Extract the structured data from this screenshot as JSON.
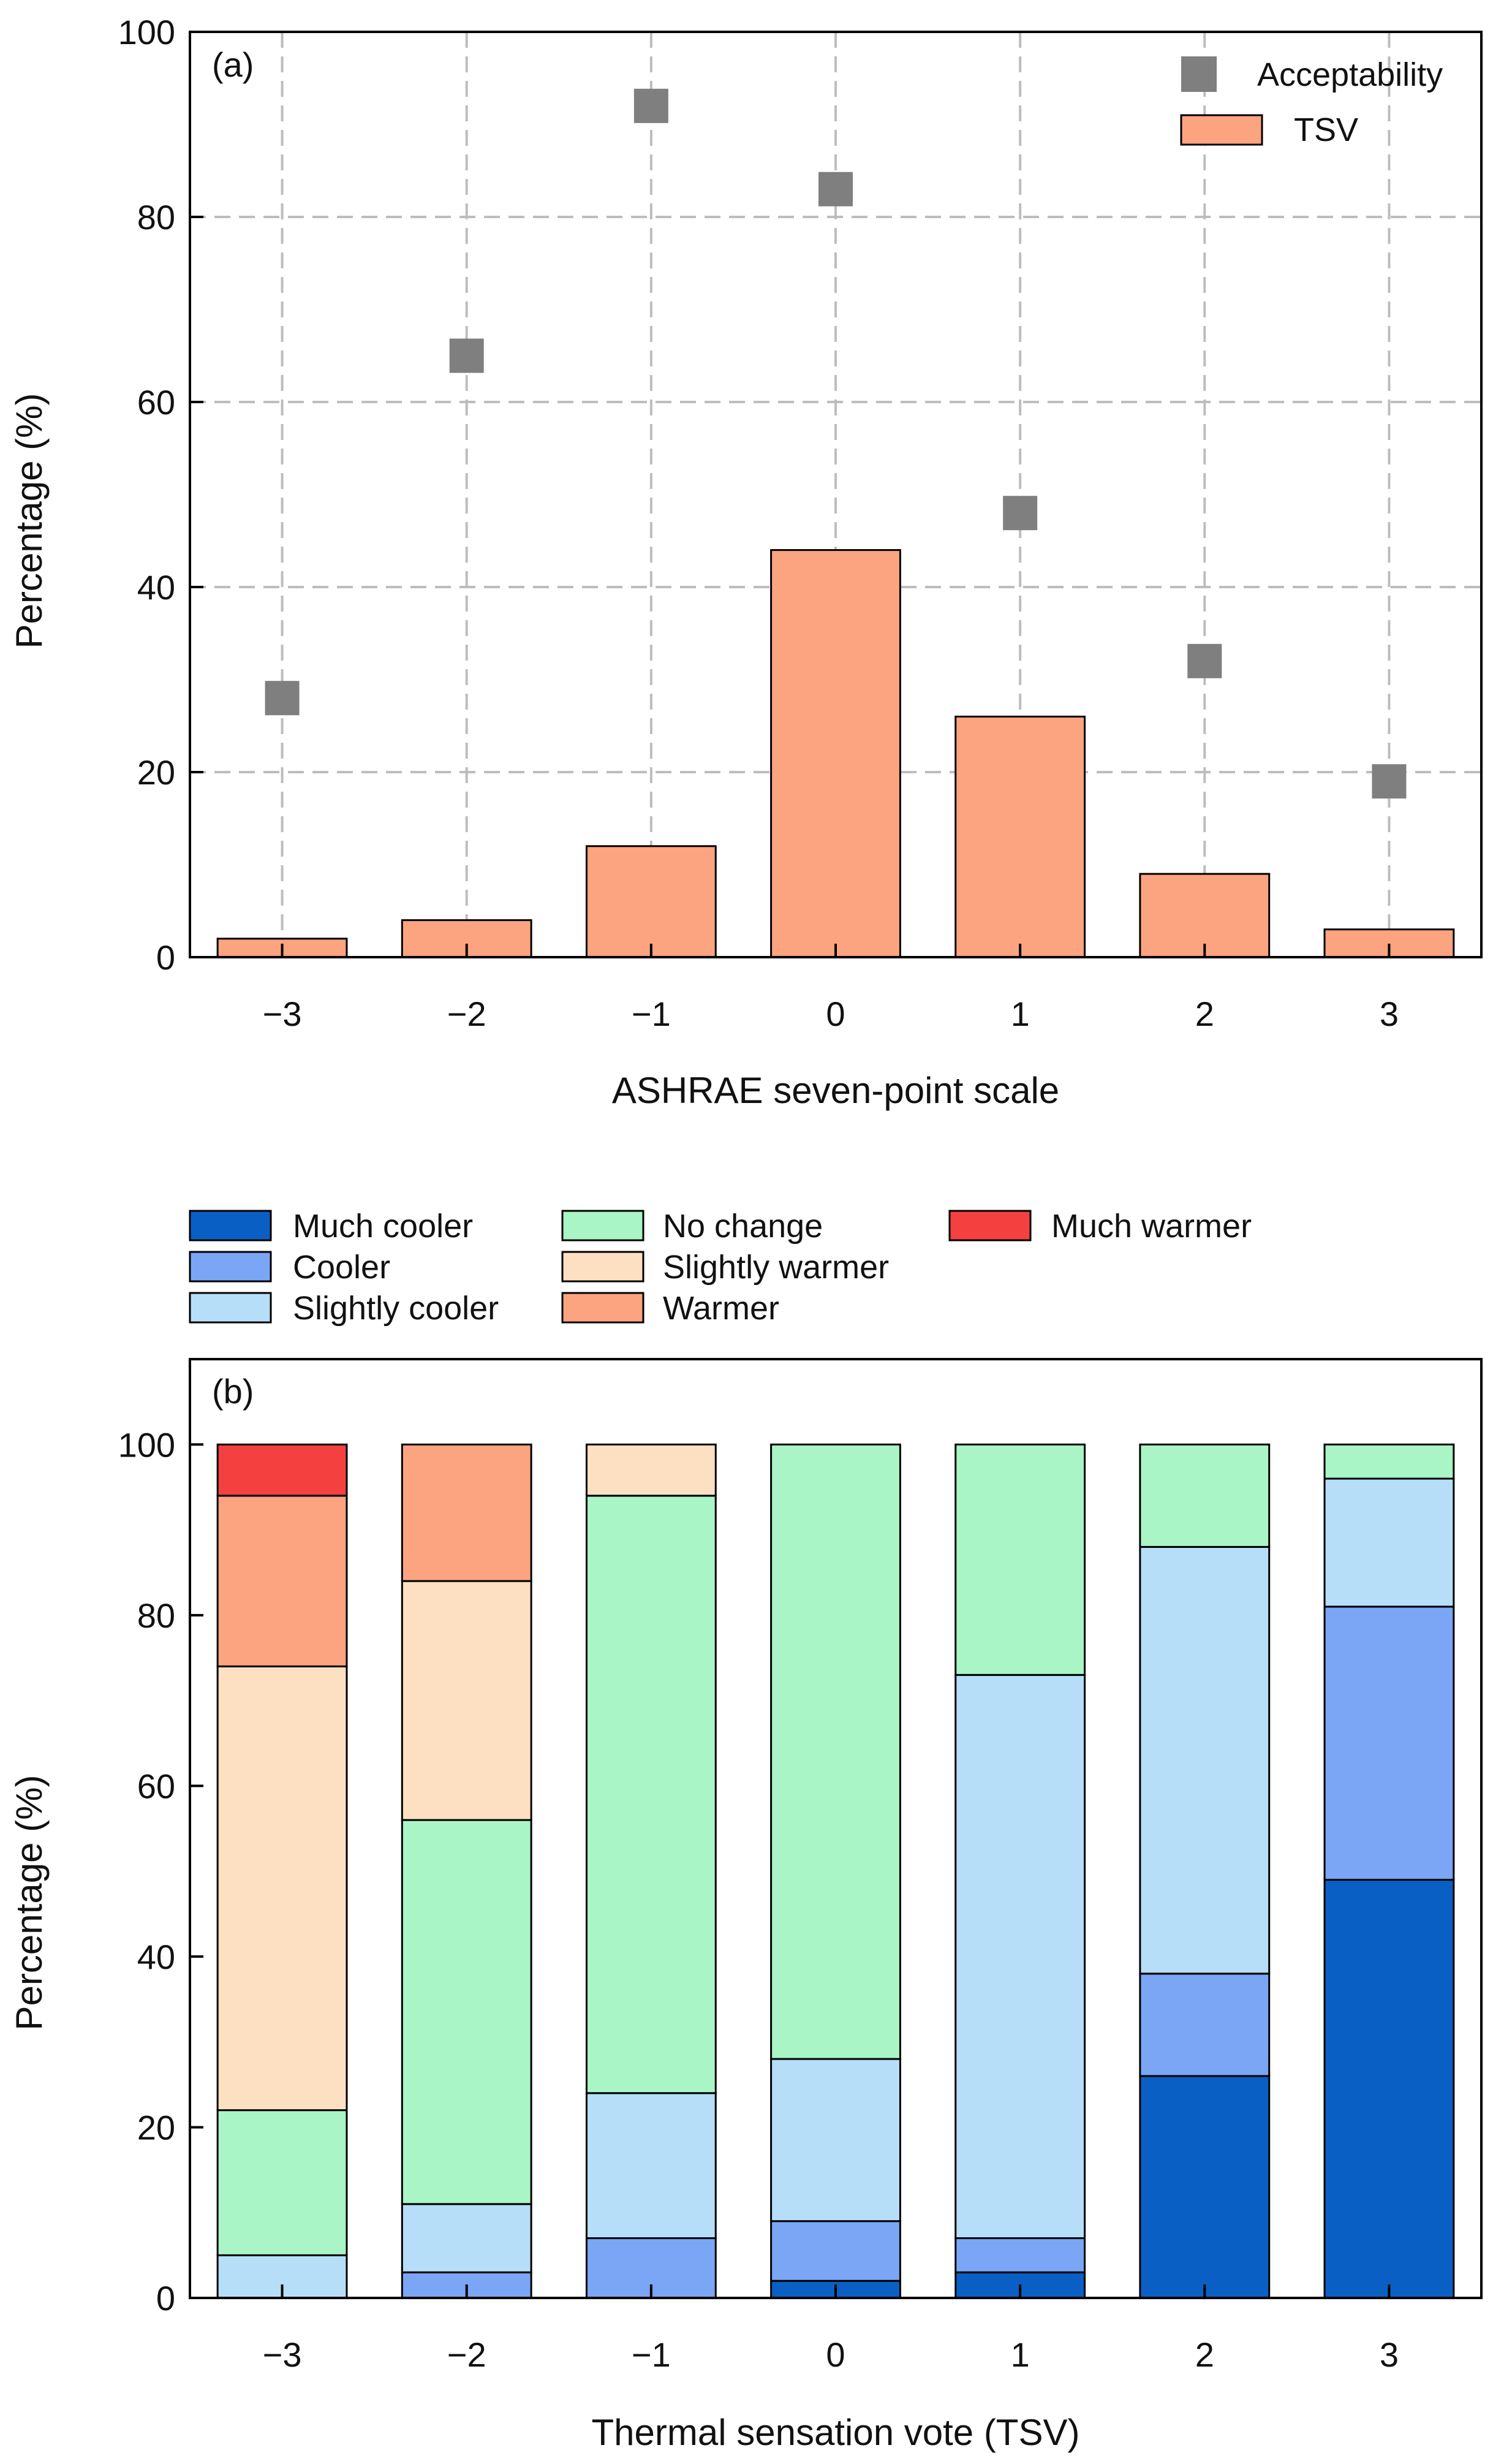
{
  "chart_data": [
    {
      "id": "a",
      "type": "bar",
      "panel_label": "(a)",
      "xlabel": "ASHRAE seven-point scale",
      "ylabel": "Percentage (%)",
      "ylim": [
        0,
        100
      ],
      "yticks": [
        "0",
        "20",
        "40",
        "60",
        "80",
        "100"
      ],
      "categories": [
        "−3",
        "−2",
        "−1",
        "0",
        "1",
        "2",
        "3"
      ],
      "grid": true,
      "legend_position": "top-right",
      "series": [
        {
          "name": "Acceptability",
          "type": "scatter",
          "marker": "square",
          "color": "#7f7f7f",
          "values": [
            28,
            65,
            92,
            83,
            48,
            32,
            19
          ]
        },
        {
          "name": "TSV",
          "type": "bar",
          "color": "#fba47f",
          "values": [
            2,
            4,
            12,
            44,
            26,
            9,
            3
          ]
        }
      ]
    },
    {
      "id": "b",
      "type": "bar",
      "stacked": true,
      "panel_label": "(b)",
      "xlabel": "Thermal sensation vote (TSV)",
      "ylabel": "Percentage (%)",
      "ylim": [
        0,
        110
      ],
      "yticks": [
        "0",
        "20",
        "40",
        "60",
        "80",
        "100"
      ],
      "categories": [
        "−3",
        "−2",
        "−1",
        "0",
        "1",
        "2",
        "3"
      ],
      "grid": false,
      "legend_position": "top, outside",
      "series": [
        {
          "name": "Much cooler",
          "color": "#0a5fc4",
          "values": [
            0,
            0,
            0,
            2,
            3,
            26,
            49
          ]
        },
        {
          "name": "Cooler",
          "color": "#7aa6f5",
          "values": [
            0,
            3,
            7,
            7,
            4,
            12,
            32
          ]
        },
        {
          "name": "Slightly cooler",
          "color": "#b7def8",
          "values": [
            5,
            8,
            17,
            19,
            66,
            50,
            15
          ]
        },
        {
          "name": "No change",
          "color": "#a9f5c5",
          "values": [
            17,
            45,
            70,
            72,
            27,
            12,
            4
          ]
        },
        {
          "name": "Slightly warmer",
          "color": "#fde0c2",
          "values": [
            52,
            28,
            6,
            0,
            0,
            0,
            0
          ]
        },
        {
          "name": "Warmer",
          "color": "#fba47f",
          "values": [
            20,
            16,
            0,
            0,
            0,
            0,
            0
          ]
        },
        {
          "name": "Much warmer",
          "color": "#f54040",
          "values": [
            6,
            0,
            0,
            0,
            0,
            0,
            0
          ]
        }
      ]
    }
  ]
}
